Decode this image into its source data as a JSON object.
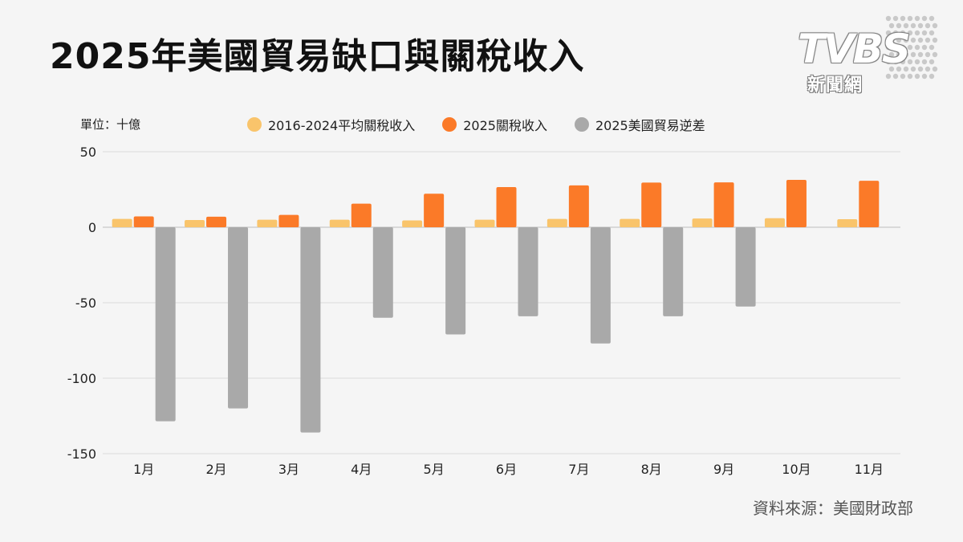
{
  "title": "2025年美國貿易缺口與關稅收入",
  "logo": {
    "word": "TVBS",
    "sub": "新聞網"
  },
  "unit_label": "單位：十億",
  "source": "資料來源：美國財政部",
  "colors": {
    "avg": "#f9c46b",
    "tariff2025": "#fb7a28",
    "deficit": "#a9a9a9",
    "grid": "#dcdcdc"
  },
  "chart_data": {
    "type": "bar",
    "categories": [
      "1月",
      "2月",
      "3月",
      "4月",
      "5月",
      "6月",
      "7月",
      "8月",
      "9月",
      "10月",
      "11月"
    ],
    "series": [
      {
        "name": "2016-2024平均關稅收入",
        "values": [
          5.5,
          4.8,
          5.0,
          5.0,
          4.5,
          5.0,
          5.5,
          5.5,
          5.8,
          6.0,
          5.3
        ]
      },
      {
        "name": "2025關稅收入",
        "values": [
          7.2,
          7.0,
          8.2,
          15.6,
          22.2,
          26.6,
          27.7,
          29.6,
          29.7,
          31.4,
          30.8
        ]
      },
      {
        "name": "2025美國貿易逆差",
        "values": [
          -128.5,
          -120.0,
          -136.0,
          -60.0,
          -71.0,
          -59.0,
          -77.0,
          -59.0,
          -52.5,
          null,
          null
        ]
      }
    ],
    "ylim": [
      -150,
      50
    ],
    "yticks": [
      50,
      0,
      -50,
      -100,
      -150
    ],
    "ytick_labels": [
      "50",
      "0",
      "-50",
      "-100",
      "-150"
    ],
    "grid": true,
    "legend": "top"
  }
}
